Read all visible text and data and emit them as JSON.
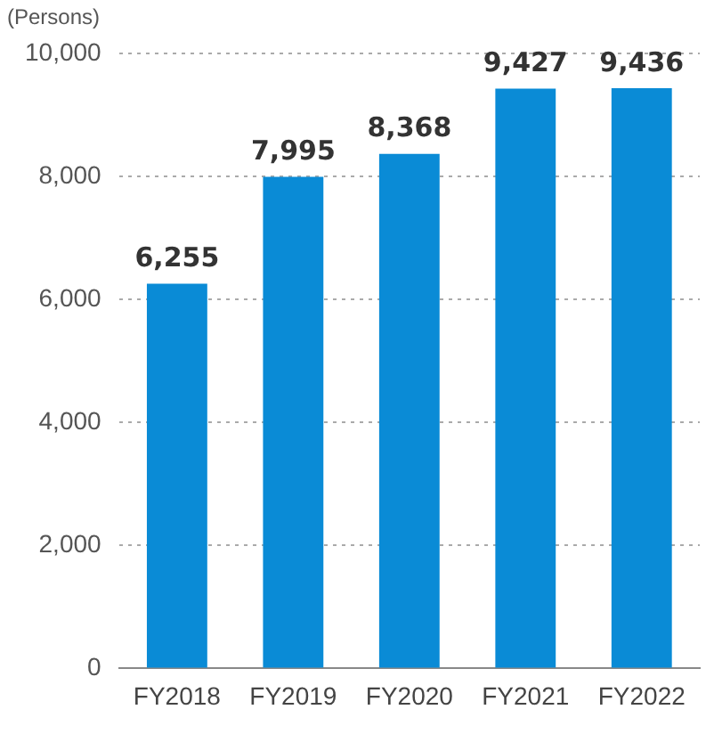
{
  "chart_data": {
    "type": "bar",
    "ylabel": "(Persons)",
    "categories": [
      "FY2018",
      "FY2019",
      "FY2020",
      "FY2021",
      "FY2022"
    ],
    "values": [
      6255,
      7995,
      8368,
      9427,
      9436
    ],
    "color": "#0a8bd6",
    "ylim": [
      0,
      10000
    ],
    "yticks": [
      0,
      {
        "value": 2000,
        "label": "2,000"
      },
      {
        "value": 4000,
        "label": "4,000"
      },
      {
        "value": 6000,
        "label": "6,000"
      },
      {
        "value": 8000,
        "label": "8,000"
      },
      {
        "value": 10000,
        "label": "10,000"
      }
    ],
    "grid": "y",
    "value_labels": [
      "6,255",
      "7,995",
      "8,368",
      "9,427",
      "9,436"
    ]
  }
}
